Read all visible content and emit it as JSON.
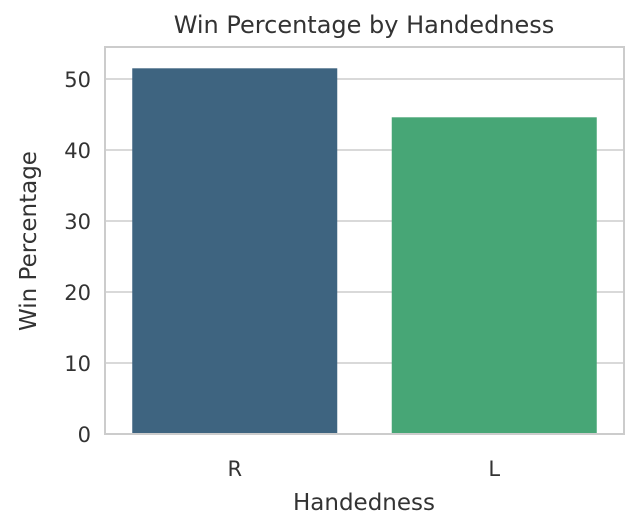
{
  "chart_data": {
    "type": "bar",
    "title": "Win Percentage by Handedness",
    "xlabel": "Handedness",
    "ylabel": "Win Percentage",
    "categories": [
      "R",
      "L"
    ],
    "values": [
      51.5,
      44.6
    ],
    "colors": [
      "#3e6480",
      "#47a676"
    ],
    "ylim": [
      0,
      54.5
    ],
    "yticks": [
      0,
      10,
      20,
      30,
      40,
      50
    ],
    "grid": true,
    "legend": "none"
  }
}
